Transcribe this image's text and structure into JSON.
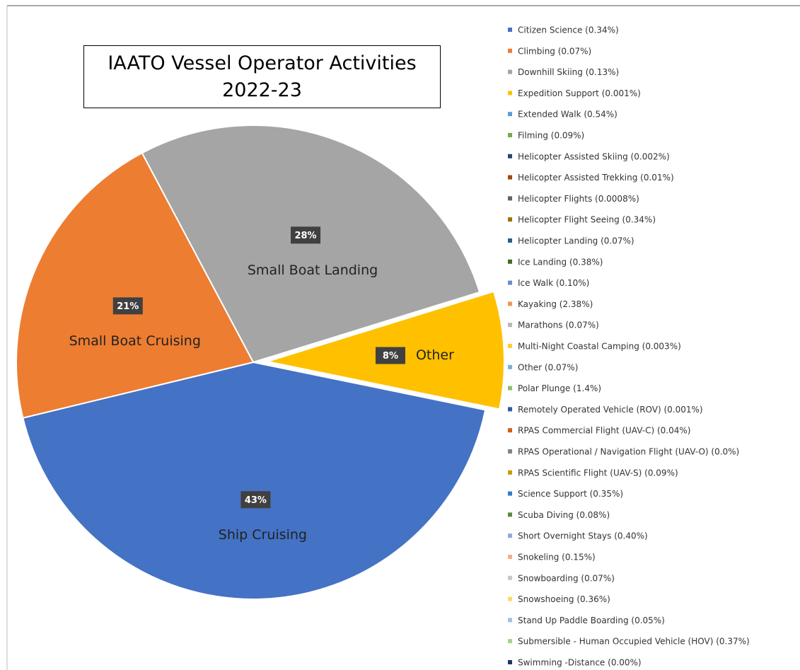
{
  "chart_data": {
    "type": "pie",
    "title": "IAATO Vessel Operator Activities\n2022-23",
    "categories": [
      "Small Boat Landing",
      "Other",
      "Ship Cruising",
      "Small Boat Cruising"
    ],
    "values": [
      28,
      8,
      43,
      21
    ],
    "value_labels": [
      "28%",
      "8%",
      "43%",
      "21%"
    ],
    "colors": [
      "#a5a5a5",
      "#ffc000",
      "#4472c4",
      "#ed7d31"
    ],
    "legend_entries": [
      "Citizen Science (0.34%)",
      "Climbing (0.07%)",
      "Downhill Skiing (0.13%)",
      "Expedition Support (0.001%)",
      "Extended Walk (0.54%)",
      "Filming (0.09%)",
      "Helicopter Assisted Skiing (0.002%)",
      "Helicopter Assisted Trekking (0.01%)",
      "Helicopter Flights (0.0008%)",
      "Helicopter Flight Seeing (0.34%)",
      "Helicopter Landing (0.07%)",
      "Ice Landing (0.38%)",
      "Ice Walk (0.10%)",
      "Kayaking (2.38%)",
      "Marathons (0.07%)",
      "Multi-Night Coastal Camping (0.003%)",
      "Other (0.07%)",
      "Polar Plunge (1.4%)",
      "Remotely Operated Vehicle (ROV) (0.001%)",
      "RPAS Commercial Flight (UAV-C) (0.04%)",
      "RPAS Operational  / Navigation Flight (UAV-O) (0.0%)",
      "RPAS Scientific Flight (UAV-S) (0.09%)",
      "Science Support (0.35%)",
      "Scuba Diving (0.08%)",
      "Short Overnight Stays (0.40%)",
      "Snokeling (0.15%)",
      "Snowboarding (0.07%)",
      "Snowshoeing (0.36%)",
      "Stand Up Paddle Boarding (0.05%)",
      "Submersible - Human Occupied Vehicle (HOV) (0.37%)",
      "Swimming -Distance (0.00%)"
    ],
    "legend_colors": [
      "#4472c4",
      "#ed7d31",
      "#a5a5a5",
      "#ffc000",
      "#5b9bd5",
      "#70ad47",
      "#264478",
      "#9e480e",
      "#636363",
      "#997300",
      "#255e91",
      "#43682b",
      "#698ed0",
      "#f1975a",
      "#b7b7b7",
      "#ffcd33",
      "#7cafdd",
      "#8cc168",
      "#335aa1",
      "#d26012",
      "#848484",
      "#cc9a00",
      "#327dc2",
      "#5a8a39",
      "#8faadc",
      "#f4b183",
      "#c9c9c9",
      "#ffd966",
      "#9dc3e6",
      "#a9d18e",
      "#203864"
    ]
  }
}
